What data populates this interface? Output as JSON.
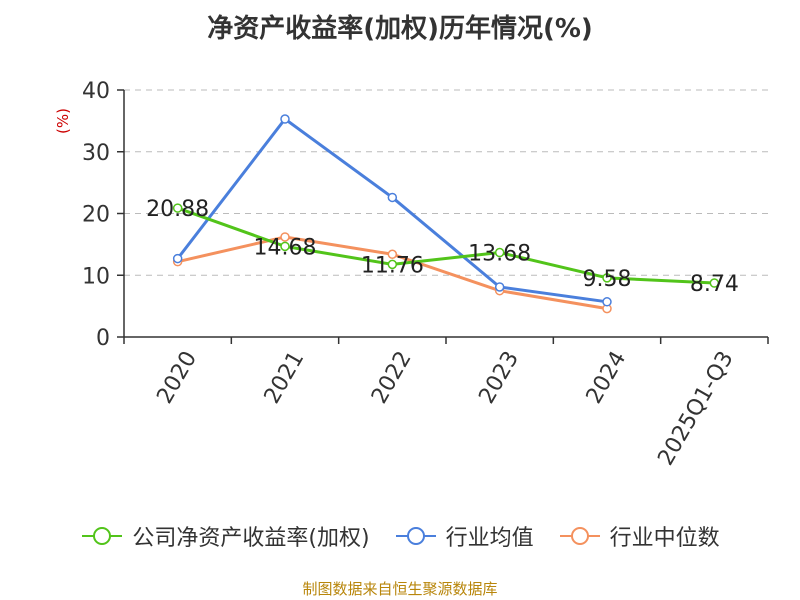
{
  "chart_data": {
    "type": "line",
    "title": "净资产收益率(加权)历年情况(%)",
    "unit_label": "(%)",
    "categories": [
      "2020",
      "2021",
      "2022",
      "2023",
      "2024",
      "2025Q1-Q3"
    ],
    "ylim": [
      0,
      40
    ],
    "yticks": [
      0,
      10,
      20,
      30,
      40
    ],
    "grid": true,
    "series": [
      {
        "name": "公司净资产收益率(加权)",
        "color": "#52c41a",
        "values": [
          20.88,
          14.68,
          11.76,
          13.68,
          9.58,
          8.74
        ],
        "labels": [
          "20.88",
          "14.68",
          "11.76",
          "13.68",
          "9.58",
          "8.74"
        ]
      },
      {
        "name": "行业均值",
        "color": "#4a7fdc",
        "values": [
          12.7,
          35.3,
          22.6,
          8.1,
          5.7,
          null
        ]
      },
      {
        "name": "行业中位数",
        "color": "#f4915e",
        "values": [
          12.2,
          16.2,
          13.4,
          7.5,
          4.6,
          null
        ]
      }
    ],
    "legend_position": "bottom"
  },
  "source": "制图数据来自恒生聚源数据库"
}
